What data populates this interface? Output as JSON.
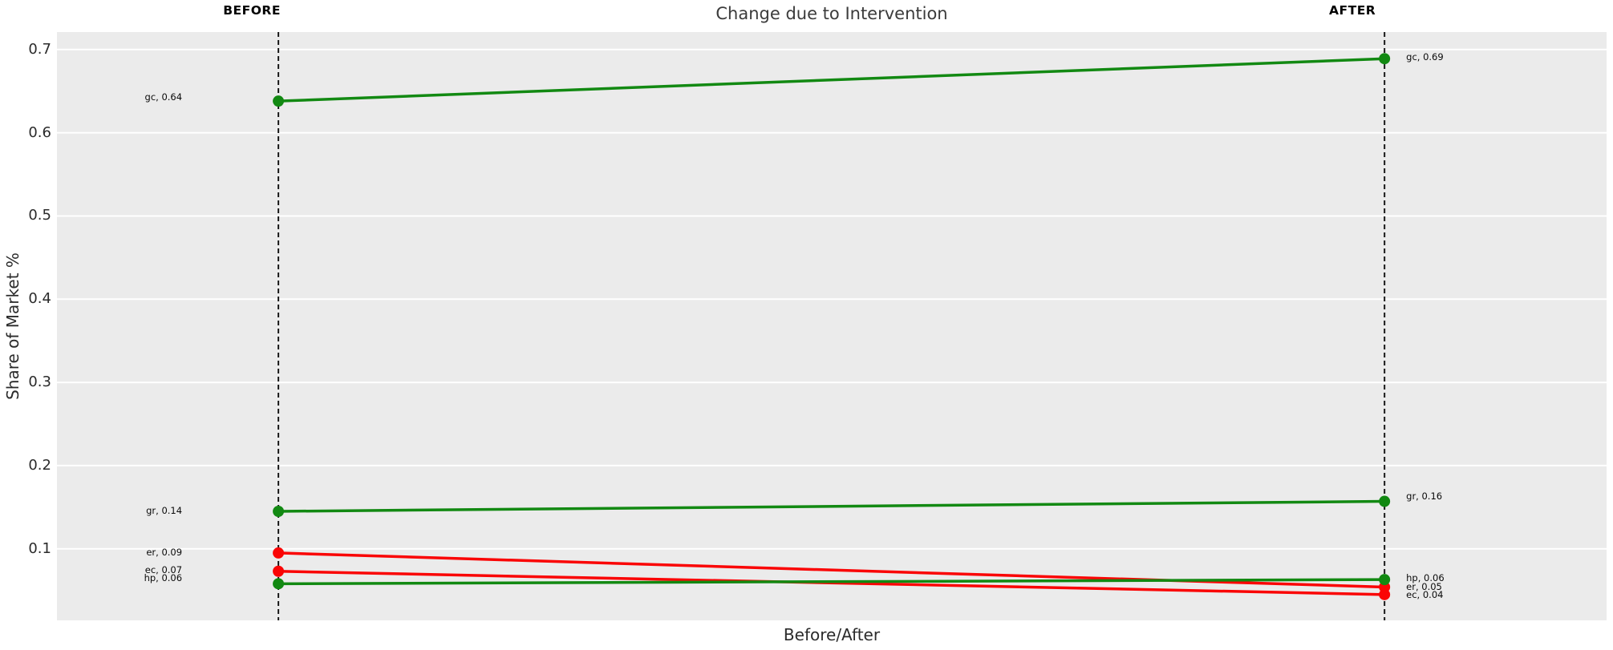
{
  "chart_data": {
    "type": "line",
    "variant": "slopegraph",
    "title": "Change due to Intervention",
    "xlabel": "Before/After",
    "ylabel": "Share of Market %",
    "x_categories": [
      "BEFORE",
      "AFTER"
    ],
    "yticks": [
      0.7,
      0.6,
      0.5,
      0.4,
      0.3,
      0.2,
      0.1
    ],
    "ytick_labels": [
      "0.7",
      "0.6",
      "0.5",
      "0.4",
      "0.3",
      "0.2",
      "0.1"
    ],
    "ylim": [
      0.014,
      0.721
    ],
    "grid": "major-horizontal-only",
    "legend": "none",
    "palette": {
      "panel_background": "#ebebeb",
      "figure_background": "#ffffff",
      "gridline": "#ffffff",
      "guide_line": "#1a1a1a",
      "increase": "#128912",
      "decrease": "#fa0505",
      "title_text": "#3b3b3b",
      "axis_text": "#2b2b2b",
      "label_text": "#0a0a0a"
    },
    "series": [
      {
        "id": "gc",
        "name": "gc",
        "direction": "increase",
        "before": 0.638,
        "after": 0.689,
        "label_before": "gc, 0.64",
        "label_after": "gc, 0.69"
      },
      {
        "id": "gr",
        "name": "gr",
        "direction": "increase",
        "before": 0.145,
        "after": 0.157,
        "label_before": "gr, 0.14",
        "label_after": "gr, 0.16"
      },
      {
        "id": "er",
        "name": "er",
        "direction": "decrease",
        "before": 0.095,
        "after": 0.054,
        "label_before": "er, 0.09",
        "label_after": "er, 0.05"
      },
      {
        "id": "ec",
        "name": "ec",
        "direction": "decrease",
        "before": 0.073,
        "after": 0.045,
        "label_before": "ec, 0.07",
        "label_after": "ec, 0.04"
      },
      {
        "id": "hp",
        "name": "hp",
        "direction": "increase",
        "before": 0.058,
        "after": 0.063,
        "label_before": "hp, 0.06",
        "label_after": "hp, 0.06"
      }
    ]
  }
}
